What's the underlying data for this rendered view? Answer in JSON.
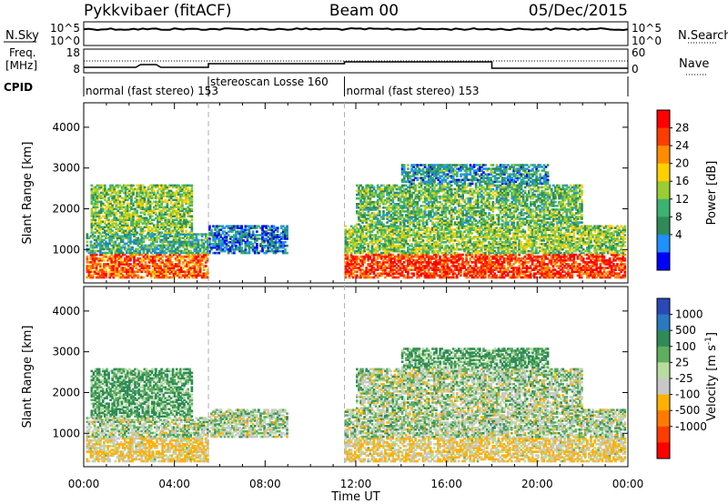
{
  "header": {
    "station": "Pykkvibaer (fitACF)",
    "beam": "Beam 00",
    "date": "05/Dec/2015"
  },
  "nsky_panel": {
    "left_label": "N.Sky",
    "left_ticks": [
      "10^5",
      "10^0"
    ],
    "right_ticks": [
      "10^5",
      "10^0"
    ],
    "right_label": "N.Search"
  },
  "freq_panel": {
    "left_label_1": "Freq.",
    "left_label_2": "[MHz]",
    "left_ticks": [
      "18",
      "8"
    ],
    "right_ticks": [
      "60",
      "0"
    ],
    "right_label": "Nave"
  },
  "cpid": {
    "label": "CPID",
    "segments": [
      {
        "text": "normal (fast stereo) 153",
        "start_h": 0.0,
        "end_h": 5.5
      },
      {
        "text": "stereoscan Losse 160",
        "start_h": 5.5,
        "end_h": 11.5
      },
      {
        "text": "normal (fast stereo) 153",
        "start_h": 11.5,
        "end_h": 24.0
      }
    ]
  },
  "power_colorbar": {
    "label": "Power [dB]",
    "ticks": [
      "28",
      "24",
      "20",
      "16",
      "12",
      "8",
      "4"
    ],
    "colors": [
      "#ff0000",
      "#ff3c00",
      "#ff8c00",
      "#ffd000",
      "#9acd32",
      "#3cb371",
      "#2e8b57",
      "#1e90ff",
      "#0000ff"
    ]
  },
  "velocity_colorbar": {
    "label": "Velocity [m s",
    "label_sup": "-1",
    "label_close": "]",
    "ticks": [
      "1000",
      "500",
      "100",
      "25",
      "-25",
      "-100",
      "-500",
      "-1000"
    ],
    "colors": [
      "#2b48b8",
      "#2a78c2",
      "#2e8b57",
      "#5fae5f",
      "#b8dca0",
      "#c8c8c8",
      "#ffb000",
      "#ff7a00",
      "#ff3c00",
      "#ff0000"
    ]
  },
  "axes": {
    "ylabel": "Slant Range [km]",
    "yticks": [
      "4000",
      "3000",
      "2000",
      "1000"
    ],
    "xticks": [
      "00:00",
      "04:00",
      "08:00",
      "12:00",
      "16:00",
      "20:00",
      "00:00"
    ],
    "xlabel": "Time UT"
  },
  "chart_data": [
    {
      "type": "heatmap",
      "title": "Power",
      "xlabel": "Time UT",
      "ylabel": "Slant Range [km]",
      "x_range_h": [
        0,
        24
      ],
      "ylim": [
        180,
        4600
      ],
      "colorbar": {
        "label": "Power [dB]",
        "range": [
          0,
          30
        ]
      },
      "regions": [
        {
          "t0": 0.1,
          "t1": 5.5,
          "r0": 300,
          "r1": 900,
          "level": 24
        },
        {
          "t0": 0.1,
          "t1": 5.5,
          "r0": 900,
          "r1": 1400,
          "level": 10
        },
        {
          "t0": 0.3,
          "t1": 4.8,
          "r0": 1400,
          "r1": 2600,
          "level": 14
        },
        {
          "t0": 5.5,
          "t1": 9.0,
          "r0": 900,
          "r1": 1600,
          "level": 6
        },
        {
          "t0": 11.5,
          "t1": 23.9,
          "r0": 300,
          "r1": 900,
          "level": 26
        },
        {
          "t0": 11.5,
          "t1": 23.9,
          "r0": 900,
          "r1": 1600,
          "level": 14
        },
        {
          "t0": 12.0,
          "t1": 22.0,
          "r0": 1600,
          "r1": 2600,
          "level": 12
        },
        {
          "t0": 14.0,
          "t1": 20.5,
          "r0": 2600,
          "r1": 3100,
          "level": 8
        }
      ]
    },
    {
      "type": "heatmap",
      "title": "Velocity",
      "xlabel": "Time UT",
      "ylabel": "Slant Range [km]",
      "x_range_h": [
        0,
        24
      ],
      "ylim": [
        180,
        4600
      ],
      "colorbar": {
        "label": "Velocity [m s-1]",
        "range": [
          -1000,
          1000
        ]
      },
      "regions": [
        {
          "t0": 0.1,
          "t1": 5.5,
          "r0": 300,
          "r1": 900,
          "level": -100
        },
        {
          "t0": 0.1,
          "t1": 5.5,
          "r0": 900,
          "r1": 1400,
          "level": 0
        },
        {
          "t0": 0.3,
          "t1": 4.8,
          "r0": 1400,
          "r1": 2600,
          "level": 100
        },
        {
          "t0": 5.5,
          "t1": 9.0,
          "r0": 900,
          "r1": 1600,
          "level": 0
        },
        {
          "t0": 11.5,
          "t1": 23.9,
          "r0": 300,
          "r1": 900,
          "level": -100
        },
        {
          "t0": 11.5,
          "t1": 23.9,
          "r0": 900,
          "r1": 1600,
          "level": 0
        },
        {
          "t0": 12.0,
          "t1": 22.0,
          "r0": 1600,
          "r1": 2600,
          "level": 0
        },
        {
          "t0": 14.0,
          "t1": 20.5,
          "r0": 2600,
          "r1": 3100,
          "level": 100
        }
      ]
    }
  ]
}
